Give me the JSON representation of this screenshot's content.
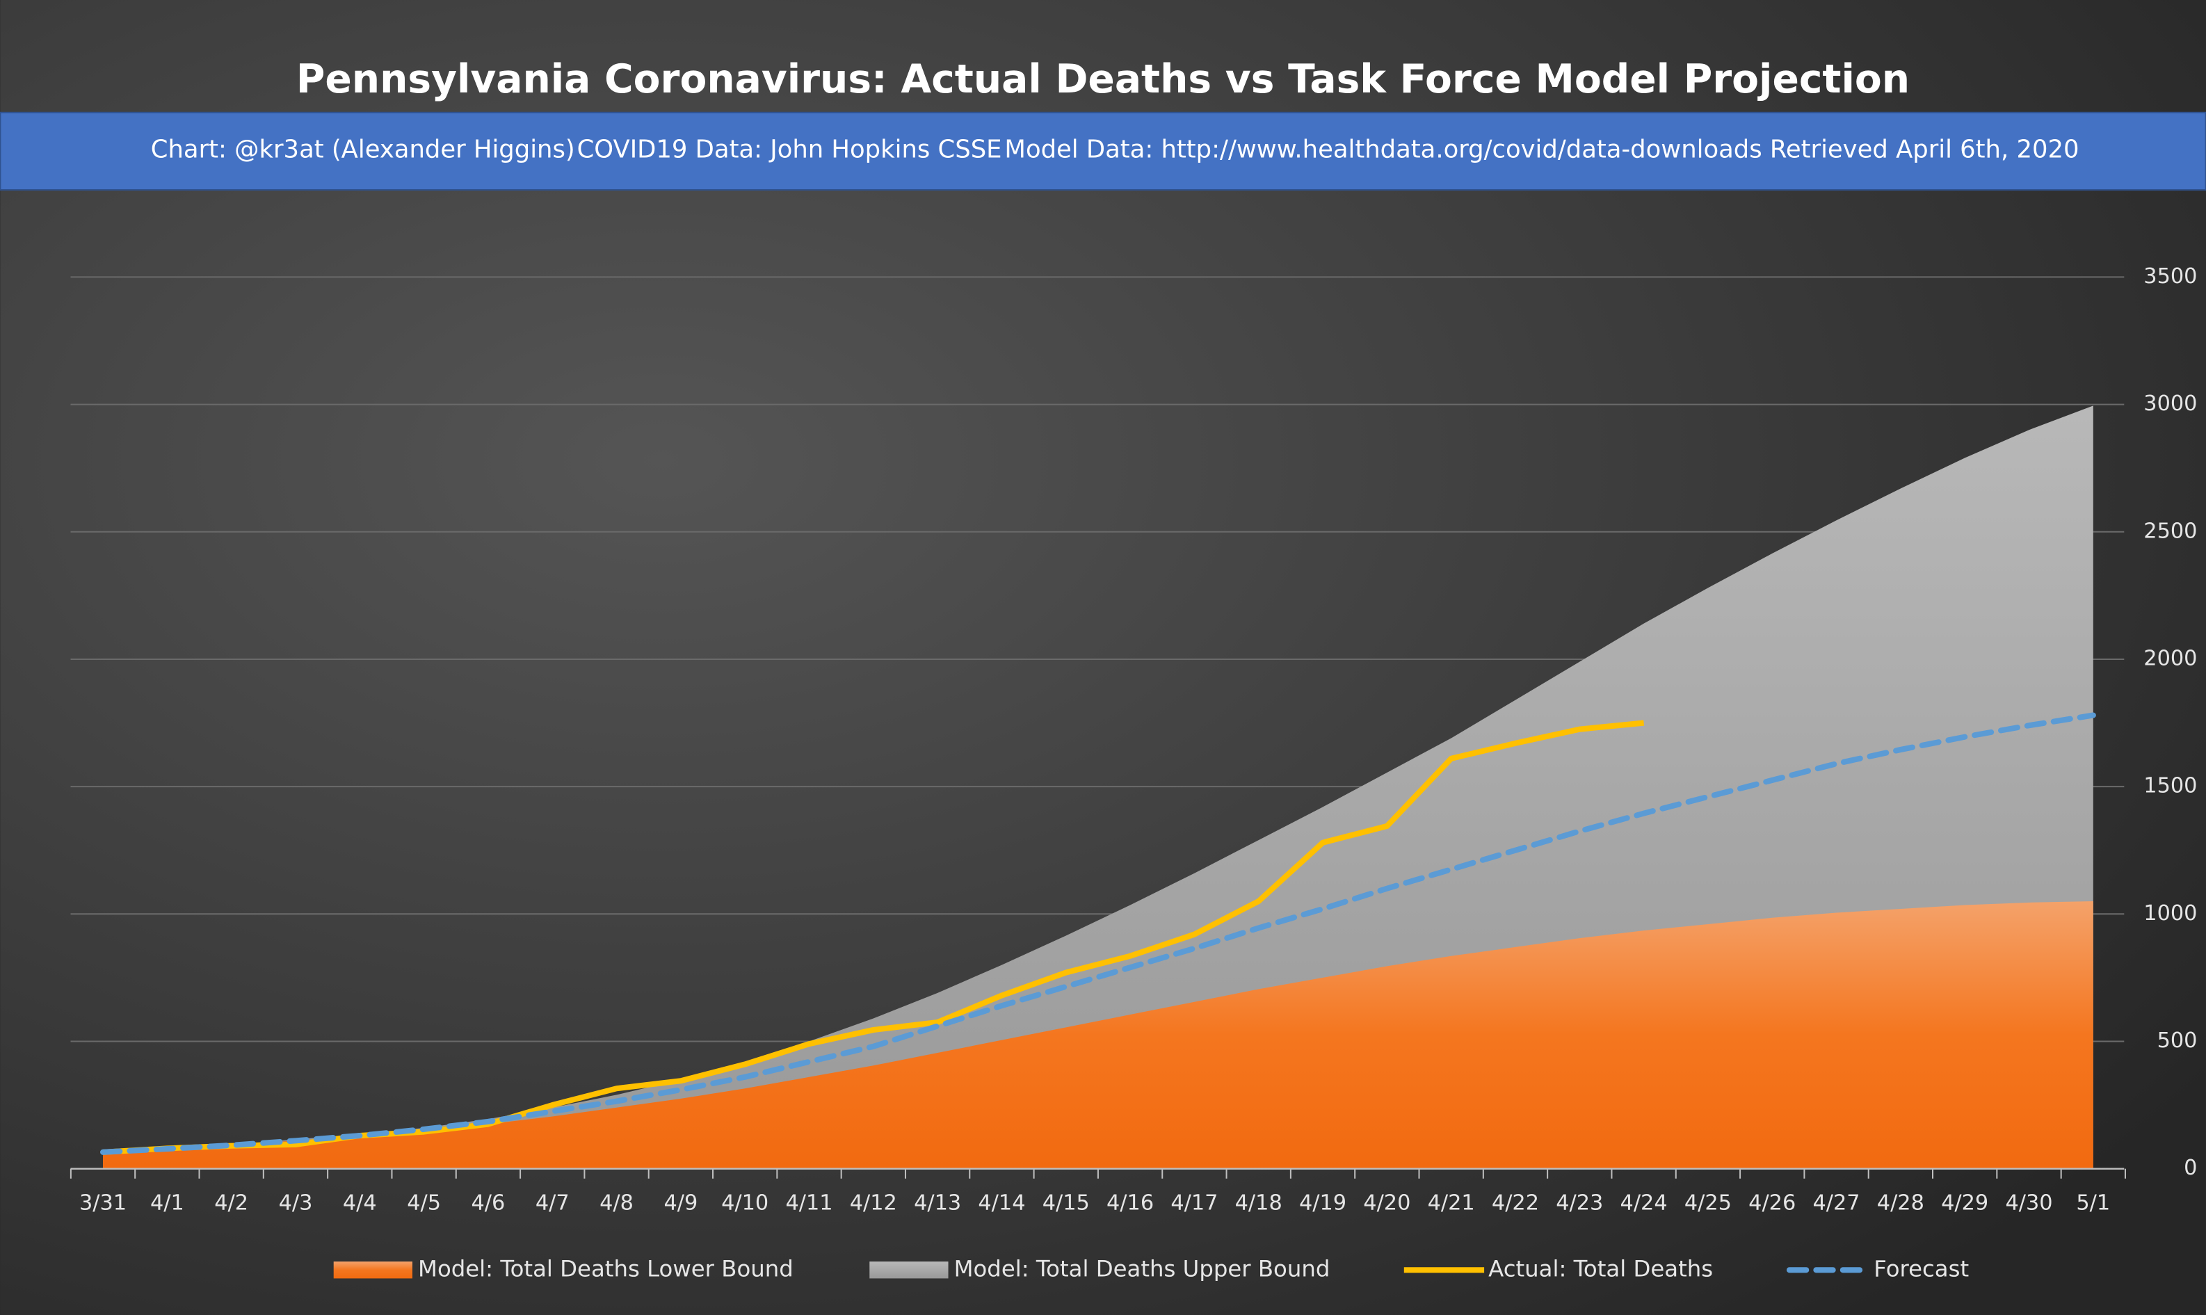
{
  "chart_data": {
    "type": "area-line",
    "title": "Pennsylvania Coronavirus: Actual Deaths vs Task Force Model Projection",
    "subtitle": [
      "Chart: @kr3at (Alexander Higgins)",
      "COVID19 Data: John Hopkins CSSE",
      "Model Data: http://www.healthdata.org/covid/data-downloads Retrieved April 6th, 2020"
    ],
    "categories": [
      "3/31",
      "4/1",
      "4/2",
      "4/3",
      "4/4",
      "4/5",
      "4/6",
      "4/7",
      "4/8",
      "4/9",
      "4/10",
      "4/11",
      "4/12",
      "4/13",
      "4/14",
      "4/15",
      "4/16",
      "4/17",
      "4/18",
      "4/19",
      "4/20",
      "4/21",
      "4/22",
      "4/23",
      "4/24",
      "4/25",
      "4/26",
      "4/27",
      "4/28",
      "4/29",
      "4/30",
      "5/1"
    ],
    "series": [
      {
        "name": "Model: Total Deaths Lower Bound",
        "kind": "area",
        "color": "#f4761f",
        "values": [
          65,
          80,
          95,
          110,
          130,
          150,
          175,
          205,
          240,
          275,
          315,
          360,
          405,
          455,
          505,
          555,
          605,
          655,
          705,
          750,
          795,
          835,
          870,
          905,
          935,
          960,
          985,
          1005,
          1020,
          1035,
          1045,
          1050
        ]
      },
      {
        "name": "Model: Total Deaths Upper Bound",
        "kind": "area",
        "color": "#a6a6a6",
        "values": [
          65,
          80,
          95,
          115,
          135,
          160,
          195,
          240,
          290,
          350,
          420,
          500,
          590,
          690,
          800,
          915,
          1035,
          1160,
          1290,
          1420,
          1555,
          1690,
          1840,
          1990,
          2140,
          2280,
          2415,
          2545,
          2670,
          2790,
          2900,
          2995
        ]
      },
      {
        "name": "Actual: Total Deaths",
        "kind": "line",
        "color": "#ffc000",
        "values": [
          65,
          80,
          90,
          95,
          130,
          145,
          175,
          250,
          315,
          345,
          410,
          490,
          545,
          575,
          680,
          770,
          835,
          920,
          1050,
          1280,
          1345,
          1610,
          1670,
          1725,
          1750,
          null,
          null,
          null,
          null,
          null,
          null,
          null
        ]
      },
      {
        "name": "Forecast",
        "kind": "dashed",
        "color": "#5b9bd5",
        "values": [
          65,
          78,
          92,
          110,
          130,
          155,
          185,
          225,
          265,
          310,
          360,
          420,
          480,
          560,
          640,
          715,
          790,
          865,
          945,
          1020,
          1100,
          1175,
          1250,
          1325,
          1395,
          1460,
          1525,
          1590,
          1645,
          1695,
          1740,
          1780
        ]
      }
    ],
    "ylim": [
      0,
      3500
    ],
    "yticks": [
      0,
      500,
      1000,
      1500,
      2000,
      2500,
      3000,
      3500
    ],
    "grid": true,
    "legend": "bottom"
  }
}
